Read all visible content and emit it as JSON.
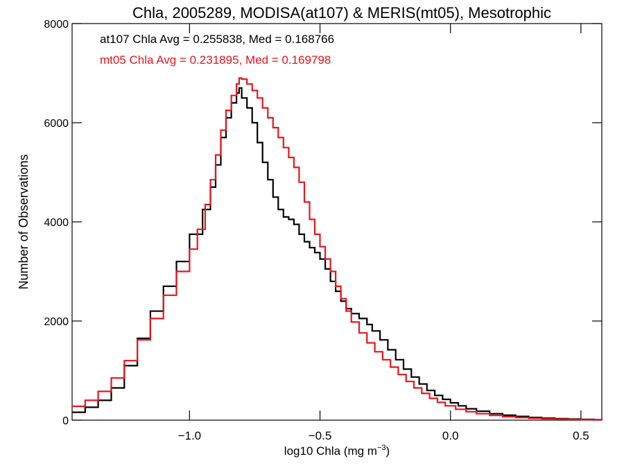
{
  "chart_data": {
    "type": "line",
    "title": "Chla, 2005289, MODISA(at107) & MERIS(mt05), Mesotrophic",
    "xlabel_main": "log10 Chla (mg m",
    "xlabel_exp": "−3",
    "xlabel_close": ")",
    "ylabel": "Number of Observations",
    "xlim": [
      -1.45,
      0.58
    ],
    "ylim": [
      0,
      8000
    ],
    "xticks": [
      -1.0,
      -0.5,
      0.0,
      0.5
    ],
    "xtick_labels": [
      "−1.0",
      "−0.5",
      "0.0",
      "0.5"
    ],
    "yticks": [
      0,
      2000,
      4000,
      6000,
      8000
    ],
    "ytick_labels": [
      "0",
      "2000",
      "4000",
      "6000",
      "8000"
    ],
    "grid": false,
    "style": "step histogram",
    "annotations": [
      {
        "text": "at107 Chla Avg = 0.255838, Med = 0.168766",
        "color": "#000000"
      },
      {
        "text": "mt05 Chla Avg = 0.231895, Med = 0.169798",
        "color": "#e8141c"
      }
    ],
    "series": [
      {
        "name": "at107",
        "color": "#000000",
        "points": [
          [
            -1.45,
            160
          ],
          [
            -1.4,
            260
          ],
          [
            -1.35,
            400
          ],
          [
            -1.3,
            650
          ],
          [
            -1.25,
            1100
          ],
          [
            -1.2,
            1650
          ],
          [
            -1.15,
            2200
          ],
          [
            -1.1,
            2700
          ],
          [
            -1.05,
            3200
          ],
          [
            -1.0,
            3750
          ],
          [
            -0.95,
            4250
          ],
          [
            -0.92,
            4700
          ],
          [
            -0.9,
            5150
          ],
          [
            -0.88,
            5700
          ],
          [
            -0.86,
            6100
          ],
          [
            -0.84,
            6400
          ],
          [
            -0.82,
            6600
          ],
          [
            -0.81,
            6700
          ],
          [
            -0.8,
            6500
          ],
          [
            -0.78,
            6300
          ],
          [
            -0.76,
            6000
          ],
          [
            -0.74,
            5600
          ],
          [
            -0.72,
            5200
          ],
          [
            -0.7,
            4850
          ],
          [
            -0.68,
            4500
          ],
          [
            -0.66,
            4250
          ],
          [
            -0.64,
            4100
          ],
          [
            -0.62,
            4050
          ],
          [
            -0.6,
            3950
          ],
          [
            -0.58,
            3750
          ],
          [
            -0.56,
            3600
          ],
          [
            -0.54,
            3480
          ],
          [
            -0.52,
            3380
          ],
          [
            -0.5,
            3250
          ],
          [
            -0.48,
            3050
          ],
          [
            -0.46,
            2800
          ],
          [
            -0.44,
            2600
          ],
          [
            -0.42,
            2400
          ],
          [
            -0.4,
            2250
          ],
          [
            -0.38,
            2150
          ],
          [
            -0.35,
            2050
          ],
          [
            -0.32,
            1930
          ],
          [
            -0.3,
            1800
          ],
          [
            -0.27,
            1620
          ],
          [
            -0.24,
            1420
          ],
          [
            -0.21,
            1220
          ],
          [
            -0.18,
            1030
          ],
          [
            -0.15,
            870
          ],
          [
            -0.12,
            730
          ],
          [
            -0.09,
            600
          ],
          [
            -0.06,
            500
          ],
          [
            -0.03,
            420
          ],
          [
            0.0,
            350
          ],
          [
            0.03,
            290
          ],
          [
            0.06,
            230
          ],
          [
            0.1,
            180
          ],
          [
            0.15,
            130
          ],
          [
            0.2,
            100
          ],
          [
            0.25,
            75
          ],
          [
            0.3,
            55
          ],
          [
            0.35,
            40
          ],
          [
            0.4,
            30
          ],
          [
            0.45,
            22
          ],
          [
            0.5,
            15
          ],
          [
            0.55,
            10
          ],
          [
            0.58,
            8
          ]
        ]
      },
      {
        "name": "mt05",
        "color": "#e8141c",
        "points": [
          [
            -1.45,
            280
          ],
          [
            -1.4,
            400
          ],
          [
            -1.35,
            580
          ],
          [
            -1.3,
            850
          ],
          [
            -1.25,
            1200
          ],
          [
            -1.2,
            1620
          ],
          [
            -1.15,
            2050
          ],
          [
            -1.1,
            2520
          ],
          [
            -1.05,
            3000
          ],
          [
            -1.0,
            3450
          ],
          [
            -0.97,
            3850
          ],
          [
            -0.94,
            4350
          ],
          [
            -0.92,
            4850
          ],
          [
            -0.9,
            5350
          ],
          [
            -0.88,
            5850
          ],
          [
            -0.86,
            6250
          ],
          [
            -0.84,
            6550
          ],
          [
            -0.82,
            6780
          ],
          [
            -0.81,
            6900
          ],
          [
            -0.8,
            6880
          ],
          [
            -0.78,
            6780
          ],
          [
            -0.76,
            6650
          ],
          [
            -0.74,
            6500
          ],
          [
            -0.72,
            6300
          ],
          [
            -0.7,
            6100
          ],
          [
            -0.68,
            5900
          ],
          [
            -0.66,
            5700
          ],
          [
            -0.64,
            5500
          ],
          [
            -0.62,
            5300
          ],
          [
            -0.6,
            5100
          ],
          [
            -0.58,
            4800
          ],
          [
            -0.56,
            4400
          ],
          [
            -0.54,
            4050
          ],
          [
            -0.52,
            3750
          ],
          [
            -0.5,
            3500
          ],
          [
            -0.48,
            3250
          ],
          [
            -0.46,
            3000
          ],
          [
            -0.44,
            2700
          ],
          [
            -0.42,
            2450
          ],
          [
            -0.4,
            2200
          ],
          [
            -0.38,
            1980
          ],
          [
            -0.35,
            1760
          ],
          [
            -0.32,
            1560
          ],
          [
            -0.29,
            1380
          ],
          [
            -0.26,
            1220
          ],
          [
            -0.23,
            1070
          ],
          [
            -0.2,
            920
          ],
          [
            -0.17,
            780
          ],
          [
            -0.14,
            650
          ],
          [
            -0.11,
            540
          ],
          [
            -0.08,
            440
          ],
          [
            -0.05,
            360
          ],
          [
            -0.02,
            290
          ],
          [
            0.02,
            220
          ],
          [
            0.06,
            170
          ],
          [
            0.1,
            130
          ],
          [
            0.15,
            95
          ],
          [
            0.2,
            70
          ],
          [
            0.25,
            52
          ],
          [
            0.3,
            38
          ],
          [
            0.35,
            28
          ],
          [
            0.4,
            20
          ],
          [
            0.45,
            15
          ],
          [
            0.5,
            10
          ],
          [
            0.55,
            7
          ],
          [
            0.58,
            5
          ]
        ]
      }
    ]
  }
}
